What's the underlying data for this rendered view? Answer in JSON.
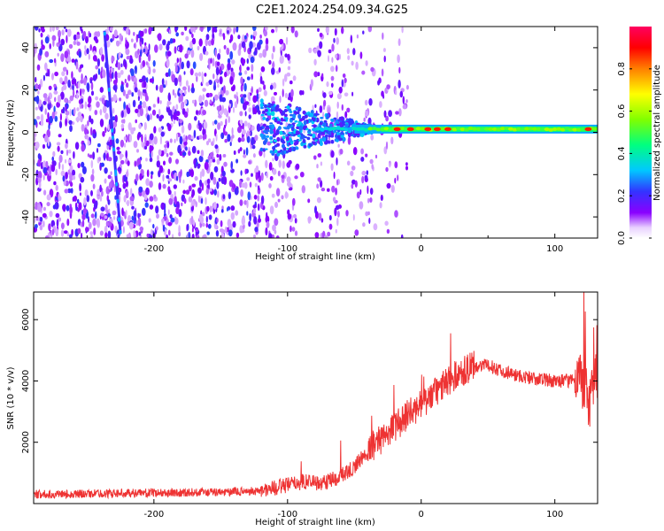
{
  "title": "C2E1.2024.254.09.34.G25",
  "chart_data": [
    {
      "type": "heatmap",
      "xlabel": "Height of straight line (km)",
      "ylabel": "Frequency (Hz)",
      "xlim": [
        -290,
        132
      ],
      "ylim": [
        -50,
        50
      ],
      "xticks": [
        -200,
        -100,
        0,
        100
      ],
      "yticks": [
        -40,
        -20,
        0,
        20,
        40
      ],
      "colorbar": {
        "label": "Normalized spectral amplitude",
        "range": [
          0,
          1
        ],
        "ticks": [
          0.0,
          0.2,
          0.4,
          0.6,
          0.8
        ],
        "colormap": [
          "#ffffff",
          "#8a00ff",
          "#3333ff",
          "#00c8ff",
          "#00ff80",
          "#80ff00",
          "#ffff00",
          "#ff8000",
          "#ff0000",
          "#ff0060"
        ]
      },
      "features": {
        "noise_region_x": [
          -290,
          -40
        ],
        "slanted_streak": {
          "x_start": -237,
          "x_end": -225,
          "y_start": 48,
          "y_end": -48
        },
        "carrier_line": {
          "x_start": -120,
          "x_end": 132,
          "frequency": 1.5
        },
        "hot_spots_x": [
          -18,
          -8,
          5,
          12,
          20,
          125
        ]
      }
    },
    {
      "type": "line",
      "xlabel": "Height of straight line (km)",
      "ylabel": "SNR (10 * v/v)",
      "xlim": [
        -290,
        132
      ],
      "ylim": [
        0,
        6900
      ],
      "xticks": [
        -200,
        -100,
        0,
        100
      ],
      "yticks": [
        2000,
        4000,
        6000
      ],
      "color": "#ee3333",
      "series": [
        {
          "x": [
            -290,
            -250,
            -200,
            -150,
            -120,
            -100,
            -85,
            -75,
            -60,
            -50,
            -40,
            -30,
            -20,
            -10,
            0,
            10,
            20,
            30,
            40,
            50,
            60,
            70,
            80,
            90,
            100,
            110,
            118,
            122,
            126,
            130,
            132
          ],
          "y": [
            300,
            320,
            350,
            370,
            420,
            600,
            750,
            650,
            900,
            1200,
            1700,
            2100,
            2500,
            2900,
            3200,
            3600,
            4000,
            4300,
            4500,
            4500,
            4350,
            4200,
            4100,
            4050,
            4000,
            4000,
            4200,
            3800,
            3300,
            4000,
            4100
          ]
        }
      ]
    }
  ]
}
